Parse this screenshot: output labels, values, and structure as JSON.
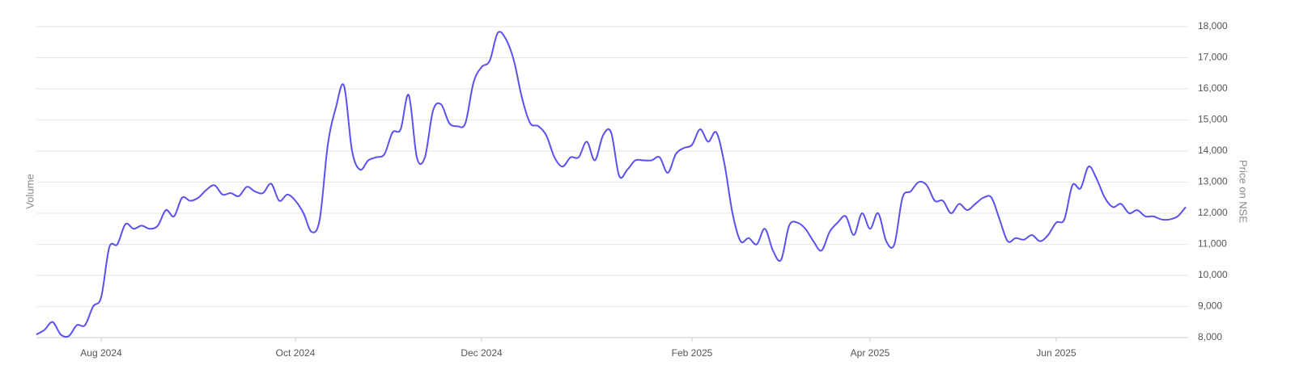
{
  "chart_data": {
    "type": "line",
    "y_axis_label": "Volume",
    "y2_axis_label": "Price on NSE",
    "categories": [
      null,
      null,
      null,
      null,
      null,
      null,
      null,
      null,
      "Aug 2024",
      null,
      null,
      null,
      null,
      null,
      null,
      null,
      null,
      null,
      null,
      null,
      null,
      null,
      null,
      null,
      null,
      null,
      null,
      null,
      null,
      null,
      null,
      null,
      "Oct 2024",
      null,
      null,
      null,
      null,
      null,
      null,
      null,
      null,
      null,
      null,
      null,
      null,
      null,
      null,
      null,
      null,
      null,
      null,
      null,
      null,
      null,
      null,
      "Dec 2024",
      null,
      null,
      null,
      null,
      null,
      null,
      null,
      null,
      null,
      null,
      null,
      null,
      null,
      null,
      null,
      null,
      null,
      null,
      null,
      null,
      null,
      null,
      null,
      null,
      null,
      "Feb 2025",
      null,
      null,
      null,
      null,
      null,
      null,
      null,
      null,
      null,
      null,
      null,
      null,
      null,
      null,
      null,
      null,
      null,
      null,
      null,
      null,
      null,
      "Apr 2025",
      null,
      null,
      null,
      null,
      null,
      null,
      null,
      null,
      null,
      null,
      null,
      null,
      null,
      null,
      null,
      null,
      null,
      null,
      null,
      null,
      null,
      null,
      "Jun 2025",
      null,
      null,
      null,
      null,
      null,
      null,
      null,
      null,
      null,
      null,
      null,
      null,
      null,
      null,
      null,
      null
    ],
    "series": [
      {
        "name": "Price on NSE",
        "color": "#5b50f0",
        "values": [
          8100,
          8250,
          8500,
          8100,
          8050,
          8400,
          8400,
          9000,
          9300,
          10900,
          11000,
          11650,
          11500,
          11600,
          11500,
          11600,
          12100,
          11900,
          12500,
          12400,
          12500,
          12750,
          12900,
          12600,
          12650,
          12550,
          12850,
          12700,
          12650,
          12950,
          12400,
          12600,
          12400,
          12000,
          11400,
          11800,
          14200,
          15400,
          16100,
          14000,
          13400,
          13700,
          13800,
          13900,
          14600,
          14700,
          15800,
          13800,
          13800,
          15300,
          15500,
          14900,
          14800,
          14900,
          16200,
          16700,
          16900,
          17800,
          17600,
          16900,
          15700,
          14900,
          14800,
          14500,
          13800,
          13500,
          13800,
          13800,
          14300,
          13700,
          14500,
          14600,
          13200,
          13400,
          13700,
          13700,
          13700,
          13800,
          13300,
          13900,
          14100,
          14200,
          14700,
          14300,
          14600,
          13600,
          12000,
          11100,
          11200,
          11000,
          11500,
          10800,
          10500,
          11600,
          11700,
          11500,
          11100,
          10800,
          11400,
          11700,
          11900,
          11300,
          12000,
          11500,
          12000,
          11100,
          11000,
          12500,
          12700,
          13000,
          12900,
          12400,
          12400,
          12000,
          12300,
          12100,
          12300,
          12500,
          12500,
          11800,
          11100,
          11200,
          11150,
          11300,
          11100,
          11300,
          11700,
          11800,
          12900,
          12800,
          13500,
          13100,
          12500,
          12200,
          12300,
          12000,
          12100,
          11900,
          11900,
          11800,
          11800,
          11900,
          12200
        ]
      }
    ],
    "ylim": [
      8000,
      18000
    ],
    "yticks": [
      {
        "value": 8000,
        "label": "8,000"
      },
      {
        "value": 9000,
        "label": "9,000"
      },
      {
        "value": 10000,
        "label": "10,000"
      },
      {
        "value": 11000,
        "label": "11,000"
      },
      {
        "value": 12000,
        "label": "12,000"
      },
      {
        "value": 13000,
        "label": "13,000"
      },
      {
        "value": 14000,
        "label": "14,000"
      },
      {
        "value": 15000,
        "label": "15,000"
      },
      {
        "value": 16000,
        "label": "16,000"
      },
      {
        "value": 17000,
        "label": "17,000"
      },
      {
        "value": 18000,
        "label": "18,000"
      }
    ],
    "grid": true
  }
}
